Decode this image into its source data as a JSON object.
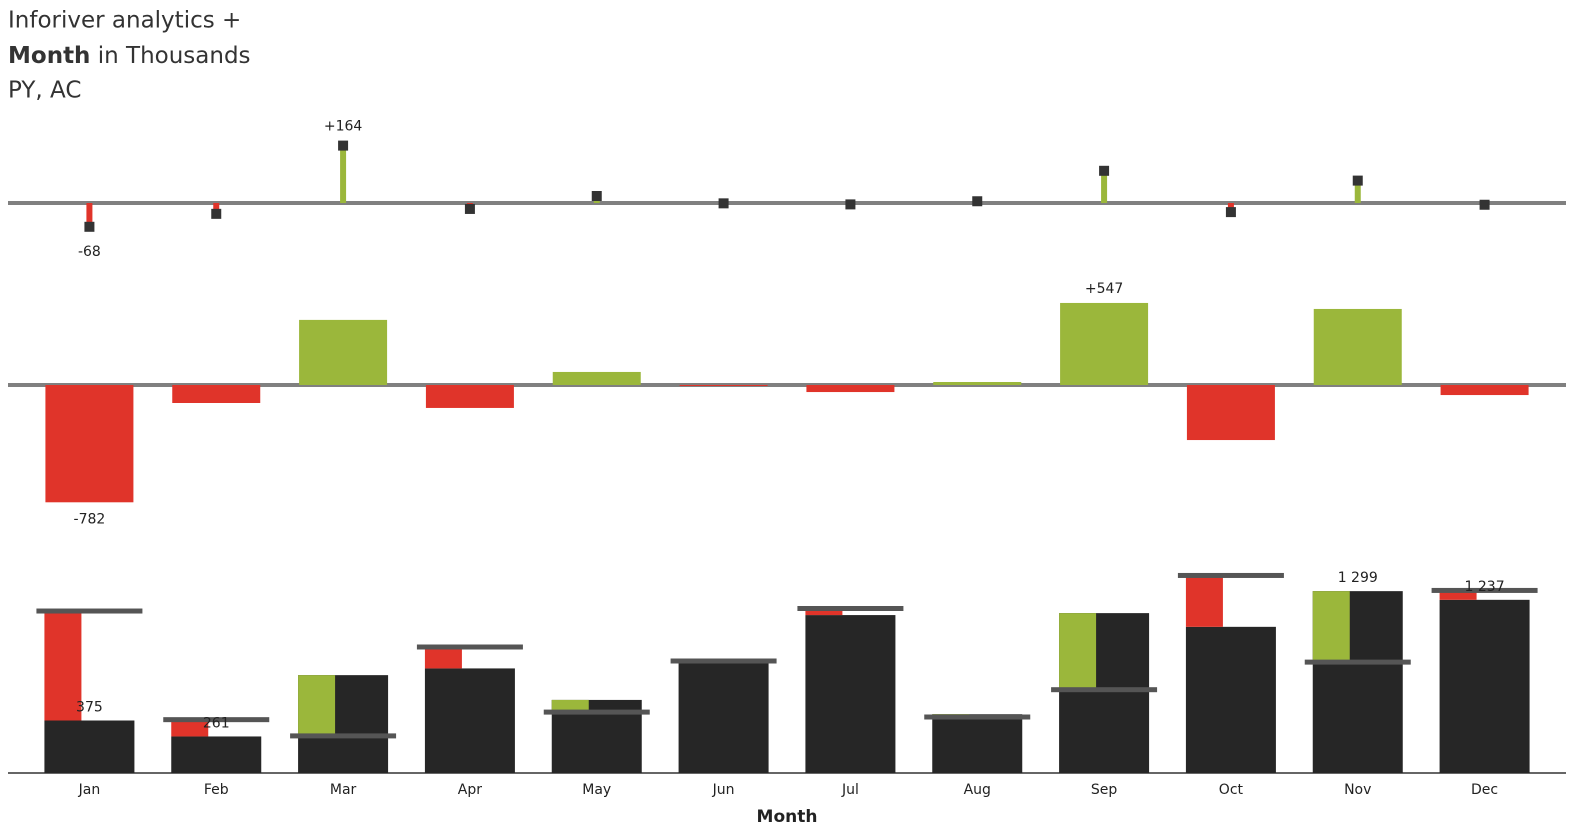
{
  "chart_data": {
    "type": "bar",
    "title": "Inforiver analytics +",
    "title_bold": "Month",
    "title_rest": " in Thousands",
    "subtitle": "PY, AC",
    "x_label": "Month",
    "categories": [
      "Jan",
      "Feb",
      "Mar",
      "Apr",
      "May",
      "Jun",
      "Jul",
      "Aug",
      "Sep",
      "Oct",
      "Nov",
      "Dec"
    ],
    "relative_variance": {
      "values": [
        -68,
        -31,
        164,
        -17,
        20,
        -1,
        -4,
        5,
        92,
        -26,
        64,
        -5
      ],
      "value_labels": [
        "-68",
        null,
        "+164",
        null,
        null,
        null,
        null,
        null,
        null,
        null,
        null,
        null
      ],
      "ylim": [
        -80,
        180
      ]
    },
    "absolute_variance": {
      "values": [
        -782,
        -120,
        434,
        -153,
        87,
        -5,
        -47,
        20,
        547,
        -367,
        507,
        -67
      ],
      "value_labels": [
        "-782",
        null,
        null,
        null,
        null,
        null,
        null,
        null,
        "+547",
        null,
        null,
        null
      ],
      "ylim": [
        -900,
        600
      ]
    },
    "py": {
      "values": [
        1157,
        381,
        265,
        900,
        435,
        800,
        1175,
        400,
        595,
        1411,
        792,
        1304
      ]
    },
    "ac": {
      "values": [
        375,
        261,
        699,
        747,
        522,
        795,
        1128,
        420,
        1142,
        1044,
        1299,
        1237
      ],
      "value_labels": [
        "375",
        "261",
        null,
        null,
        null,
        null,
        null,
        null,
        null,
        null,
        "1 299",
        "1 237"
      ]
    },
    "ylim": [
      0,
      1500
    ],
    "positive_color": "#9bb73b",
    "negative_color": "#e0342a",
    "ac_color": "#262626",
    "py_color": "#555555"
  }
}
